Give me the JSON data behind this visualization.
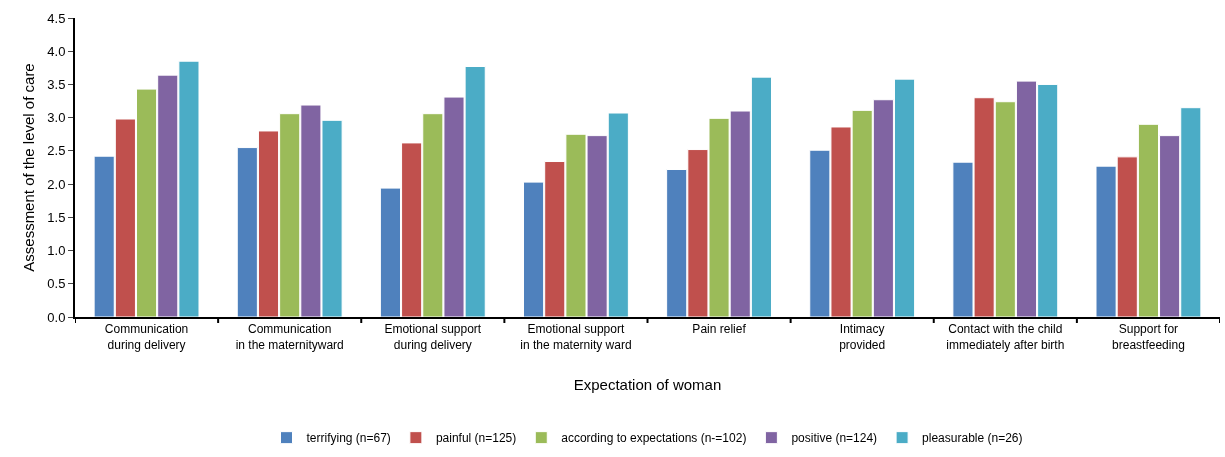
{
  "chart_data": {
    "type": "bar",
    "xlabel": "Expectation of woman",
    "ylabel": "Assessment of the level of care",
    "categories": [
      "Communication\nduring delivery",
      "Communication\nin the maternityward",
      "Emotional support\nduring delivery",
      "Emotional support\nin the maternity ward",
      "Pain relief",
      "Intimacy\nprovided",
      "Contact with the child\nimmediately after birth",
      "Support for\nbreastfeeding"
    ],
    "series": [
      {
        "name": "terrifying (n=67)",
        "color": "#4f81bd",
        "values": [
          2.42,
          2.55,
          1.94,
          2.03,
          2.22,
          2.51,
          2.33,
          2.27
        ]
      },
      {
        "name": "painful (n=125)",
        "color": "#c0504d",
        "values": [
          2.98,
          2.8,
          2.62,
          2.34,
          2.52,
          2.86,
          3.3,
          2.41
        ]
      },
      {
        "name": "according to expectations (n-=102)",
        "color": "#9bbb59",
        "values": [
          3.43,
          3.06,
          3.06,
          2.75,
          2.99,
          3.11,
          3.24,
          2.9
        ]
      },
      {
        "name": "positive (n=124)",
        "color": "#8064a2",
        "values": [
          3.64,
          3.19,
          3.31,
          2.73,
          3.1,
          3.27,
          3.55,
          2.73
        ]
      },
      {
        "name": "pleasurable (n=26)",
        "color": "#4bacc6",
        "values": [
          3.85,
          2.96,
          3.77,
          3.07,
          3.61,
          3.58,
          3.5,
          3.15
        ]
      }
    ],
    "ylim": [
      0,
      4.5
    ],
    "yticks": [
      {
        "value": 0,
        "label": "0.0"
      },
      {
        "value": 0.5,
        "label": "0.5"
      },
      {
        "value": 1,
        "label": "1.0"
      },
      {
        "value": 1.5,
        "label": "1.5"
      },
      {
        "value": 2,
        "label": "2.0"
      },
      {
        "value": 2.5,
        "label": "2.5"
      },
      {
        "value": 3,
        "label": "3.0"
      },
      {
        "value": 3.5,
        "label": "3.5"
      },
      {
        "value": 4,
        "label": "4.0"
      },
      {
        "value": 4.5,
        "label": "4.5"
      }
    ],
    "grid": false,
    "legend": "bottom"
  }
}
